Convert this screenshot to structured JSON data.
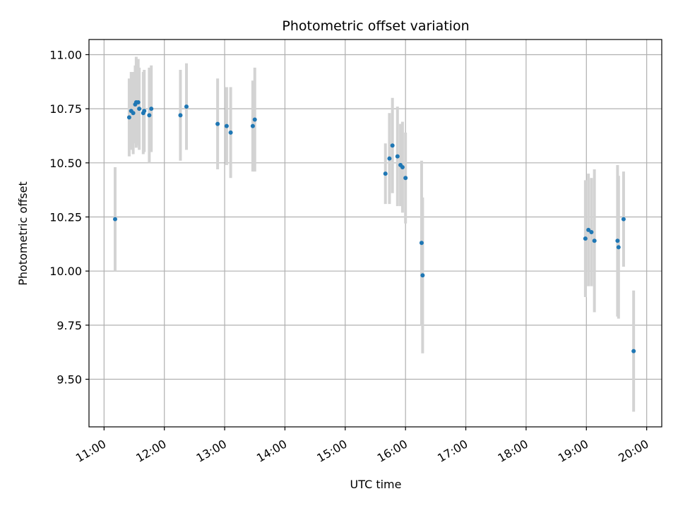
{
  "chart_data": {
    "type": "scatter",
    "title": "Photometric offset variation",
    "xlabel": "UTC time",
    "ylabel": "Photometric offset",
    "xlim": [
      "10:45",
      "20:15"
    ],
    "ylim": [
      9.28,
      11.07
    ],
    "grid": true,
    "x_ticks": [
      "11:00",
      "12:00",
      "13:00",
      "14:00",
      "15:00",
      "16:00",
      "17:00",
      "18:00",
      "19:00",
      "20:00"
    ],
    "y_ticks": [
      9.5,
      9.75,
      10.0,
      10.25,
      10.5,
      10.75,
      11.0
    ],
    "y_tick_labels": [
      "9.50",
      "9.75",
      "10.00",
      "10.25",
      "10.50",
      "10.75",
      "11.00"
    ],
    "colors": {
      "point": "#1f77b4",
      "errorbar": "#d3d3d3"
    },
    "points": [
      {
        "x": "11:11",
        "y": 10.24,
        "err": 0.24
      },
      {
        "x": "11:25",
        "y": 10.71,
        "err": 0.18
      },
      {
        "x": "11:27",
        "y": 10.74,
        "err": 0.18
      },
      {
        "x": "11:29",
        "y": 10.73,
        "err": 0.19
      },
      {
        "x": "11:31",
        "y": 10.77,
        "err": 0.18
      },
      {
        "x": "11:32",
        "y": 10.78,
        "err": 0.21
      },
      {
        "x": "11:34",
        "y": 10.78,
        "err": 0.2
      },
      {
        "x": "11:35",
        "y": 10.75,
        "err": 0.19
      },
      {
        "x": "11:39",
        "y": 10.73,
        "err": 0.19
      },
      {
        "x": "11:40",
        "y": 10.74,
        "err": 0.19
      },
      {
        "x": "11:45",
        "y": 10.72,
        "err": 0.22
      },
      {
        "x": "11:47",
        "y": 10.75,
        "err": 0.2
      },
      {
        "x": "12:16",
        "y": 10.72,
        "err": 0.21
      },
      {
        "x": "12:22",
        "y": 10.76,
        "err": 0.2
      },
      {
        "x": "12:53",
        "y": 10.68,
        "err": 0.21
      },
      {
        "x": "13:02",
        "y": 10.67,
        "err": 0.18
      },
      {
        "x": "13:06",
        "y": 10.64,
        "err": 0.21
      },
      {
        "x": "13:28",
        "y": 10.67,
        "err": 0.21
      },
      {
        "x": "13:30",
        "y": 10.7,
        "err": 0.24
      },
      {
        "x": "15:40",
        "y": 10.45,
        "err": 0.14
      },
      {
        "x": "15:44",
        "y": 10.52,
        "err": 0.21
      },
      {
        "x": "15:47",
        "y": 10.58,
        "err": 0.22
      },
      {
        "x": "15:52",
        "y": 10.53,
        "err": 0.23
      },
      {
        "x": "15:55",
        "y": 10.49,
        "err": 0.19
      },
      {
        "x": "15:57",
        "y": 10.48,
        "err": 0.21
      },
      {
        "x": "16:00",
        "y": 10.43,
        "err": 0.21
      },
      {
        "x": "16:16",
        "y": 10.13,
        "err": 0.38
      },
      {
        "x": "16:17",
        "y": 9.98,
        "err": 0.36
      },
      {
        "x": "18:59",
        "y": 10.15,
        "err": 0.27
      },
      {
        "x": "19:02",
        "y": 10.19,
        "err": 0.26
      },
      {
        "x": "19:05",
        "y": 10.18,
        "err": 0.25
      },
      {
        "x": "19:08",
        "y": 10.14,
        "err": 0.33
      },
      {
        "x": "19:31",
        "y": 10.14,
        "err": 0.35
      },
      {
        "x": "19:32",
        "y": 10.11,
        "err": 0.33
      },
      {
        "x": "19:37",
        "y": 10.24,
        "err": 0.22
      },
      {
        "x": "19:47",
        "y": 9.63,
        "err": 0.28
      }
    ]
  }
}
